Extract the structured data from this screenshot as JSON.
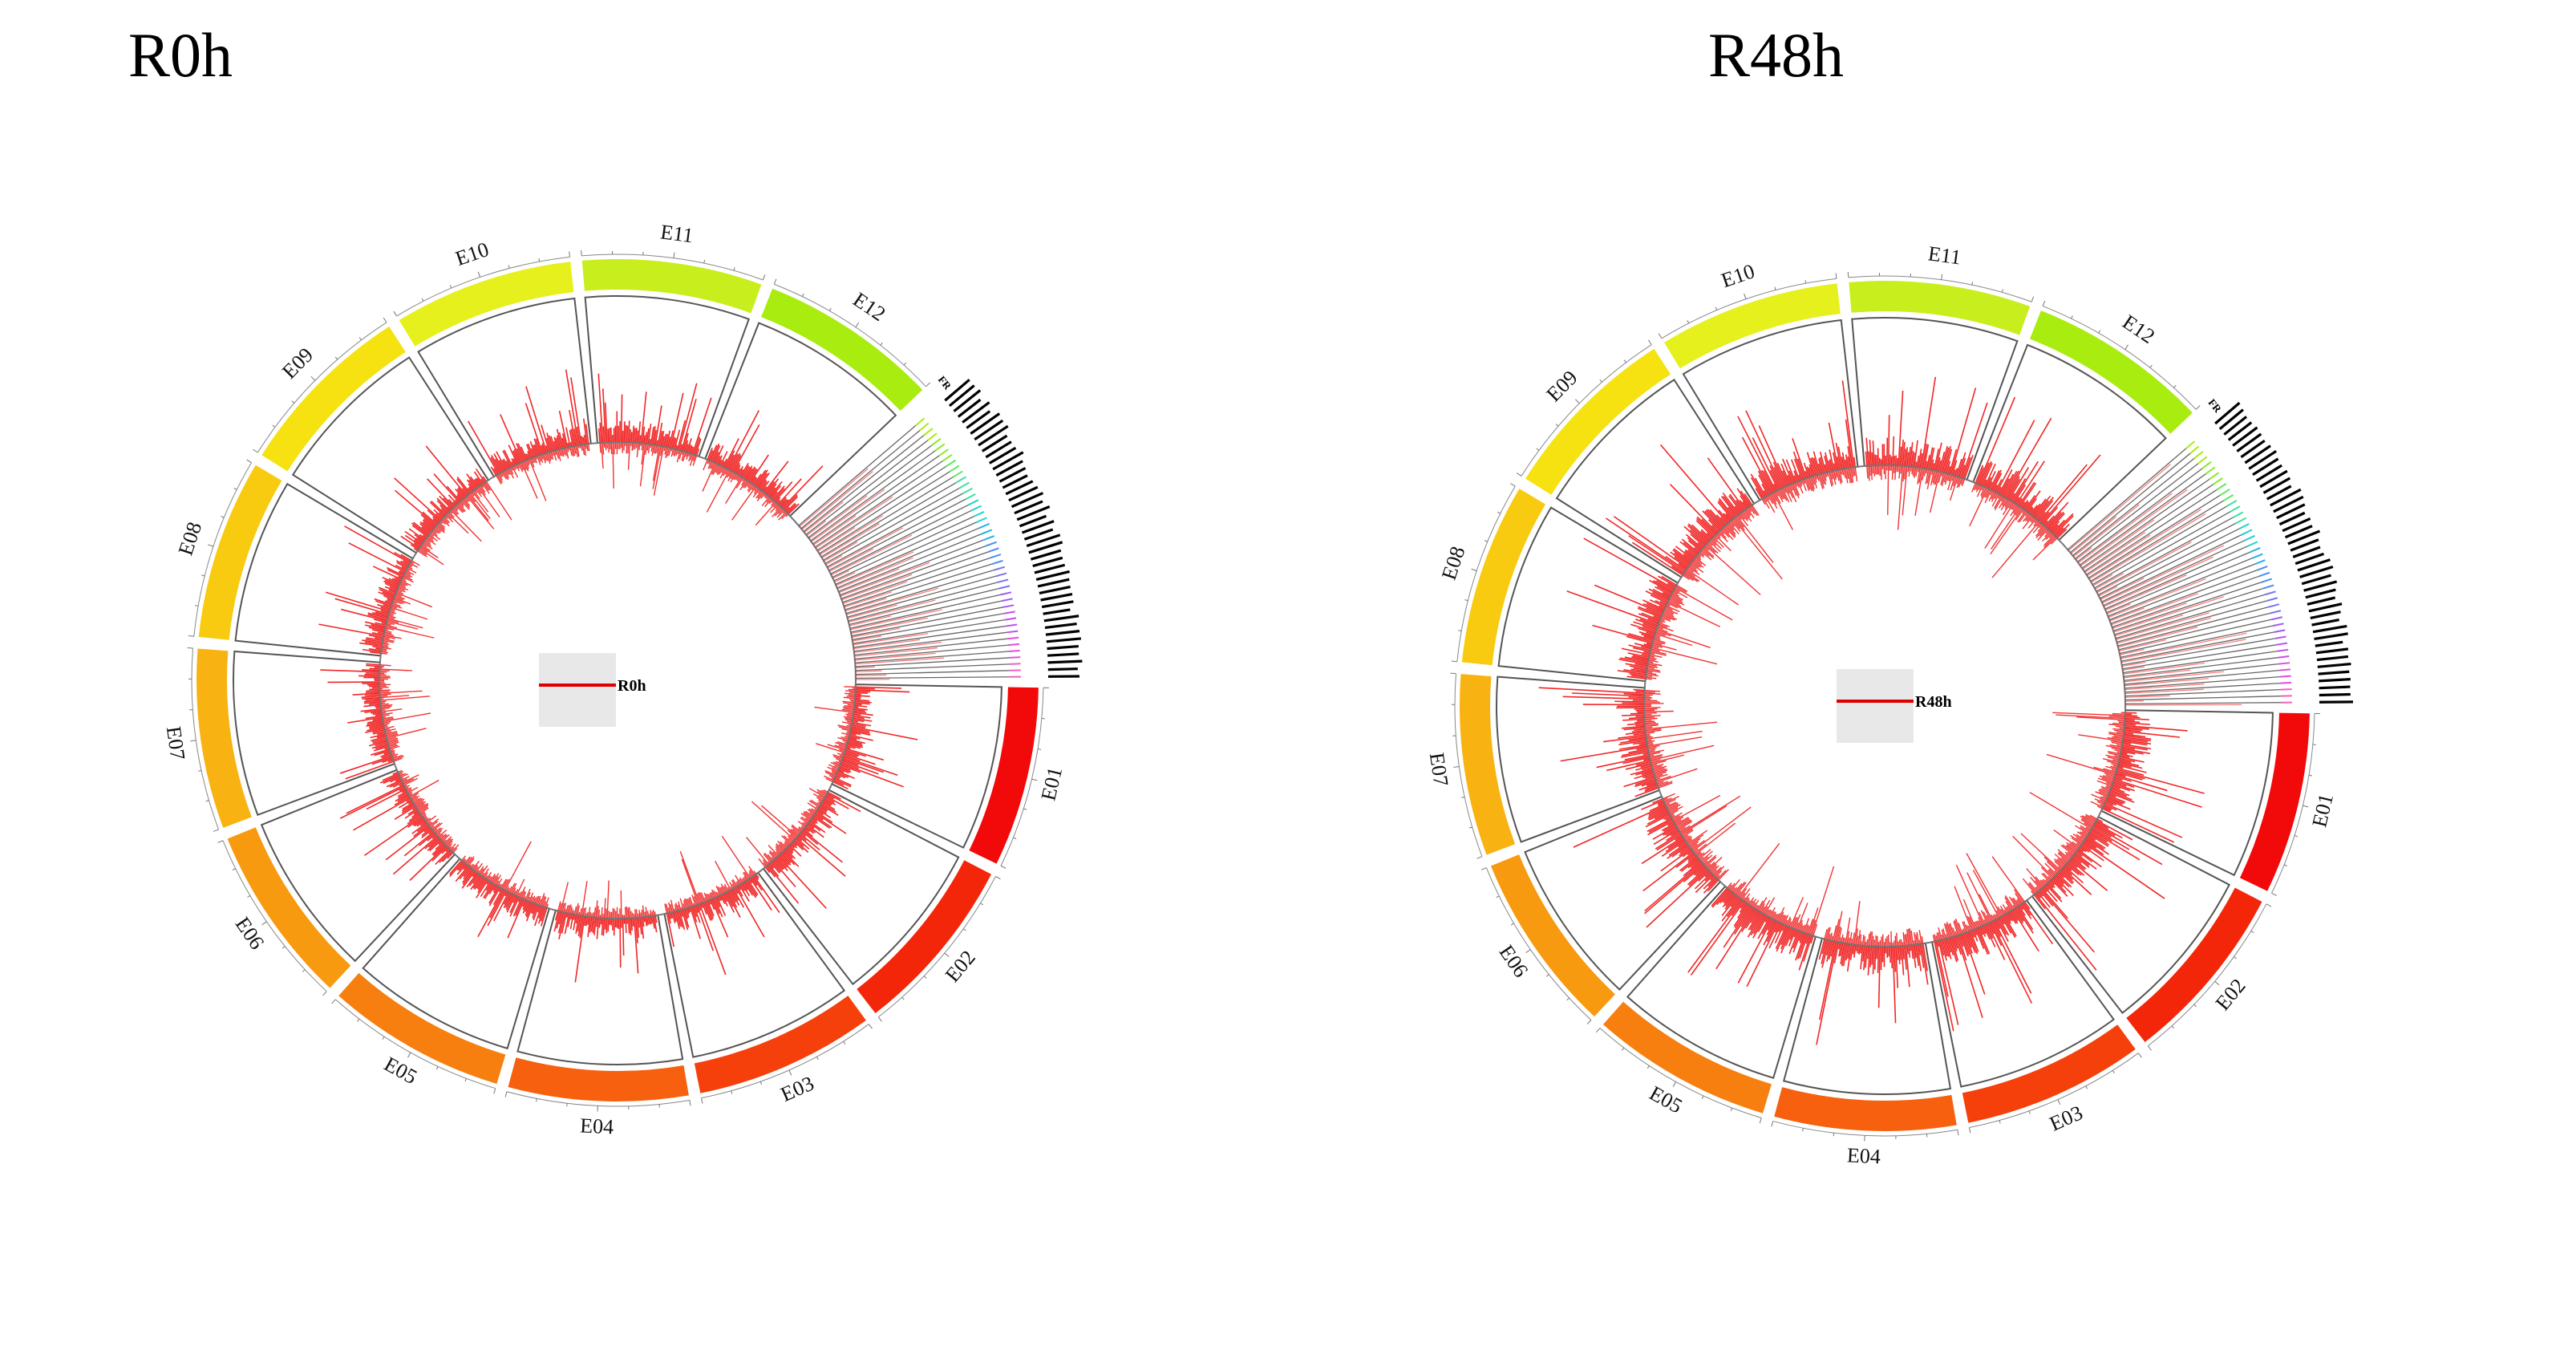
{
  "figure": {
    "panels": [
      {
        "id": "r0h",
        "title": "R0h",
        "legend_label": "R0h",
        "seed": 7,
        "intensity": 0.85
      },
      {
        "id": "r48h",
        "title": "R48h",
        "legend_label": "R48h",
        "seed": 31,
        "intensity": 1.15
      }
    ],
    "segments": [
      {
        "label": "E01",
        "color": "#f20a0a"
      },
      {
        "label": "E02",
        "color": "#f4260a"
      },
      {
        "label": "E03",
        "color": "#f5400c"
      },
      {
        "label": "E04",
        "color": "#f6600e"
      },
      {
        "label": "E05",
        "color": "#f77f10"
      },
      {
        "label": "E06",
        "color": "#f89a10"
      },
      {
        "label": "E07",
        "color": "#f8b312"
      },
      {
        "label": "E08",
        "color": "#f8cb10"
      },
      {
        "label": "E09",
        "color": "#f5e210"
      },
      {
        "label": "E10",
        "color": "#e6f01c"
      },
      {
        "label": "E11",
        "color": "#c9ee1e"
      },
      {
        "label": "E12",
        "color": "#a9ec10"
      }
    ],
    "scaffold_prefix": "FR",
    "track_color": "#ee0000",
    "legend_line_color": "#e00000",
    "legend_box_color": "#e8e8e8"
  }
}
